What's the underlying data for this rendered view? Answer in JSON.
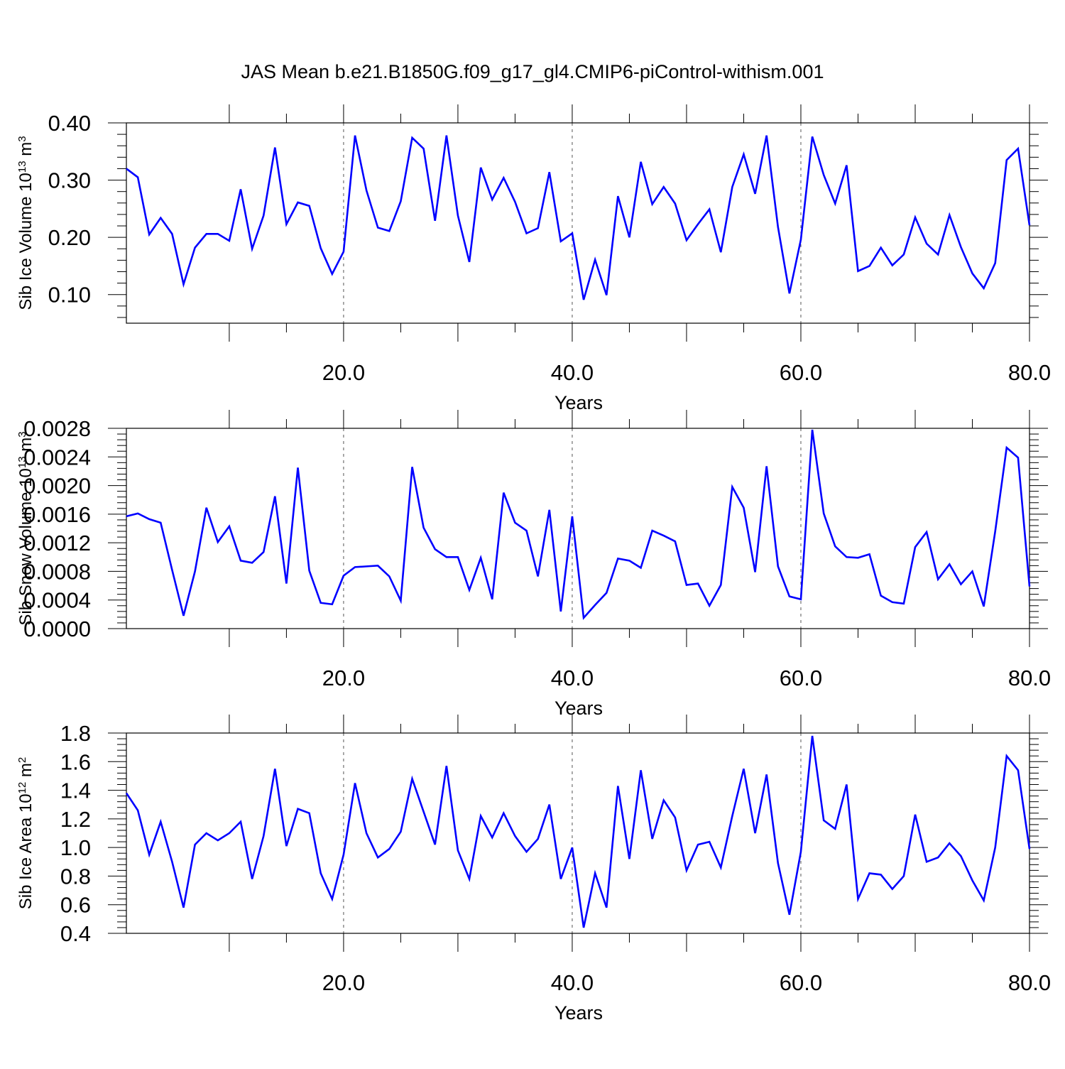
{
  "title": "JAS Mean b.e21.B1850G.f09_g17_gl4.CMIP6-piControl-withism.001",
  "line_color": "#0000ff",
  "chart_data": [
    {
      "type": "line",
      "xlabel": "Years",
      "ylabel": {
        "text": "Sib Ice Volume 10",
        "exp": "13",
        "unit": " m",
        "unit_exp": "3"
      },
      "xlim": [
        1,
        80
      ],
      "ylim": [
        0.05,
        0.4
      ],
      "xticks": [
        "20.0",
        "40.0",
        "60.0",
        "80.0"
      ],
      "yticks": [
        "0.10",
        "0.20",
        "0.30",
        "0.40"
      ],
      "x": [
        1,
        2,
        3,
        4,
        5,
        6,
        7,
        8,
        9,
        10,
        11,
        12,
        13,
        14,
        15,
        16,
        17,
        18,
        19,
        20,
        21,
        22,
        23,
        24,
        25,
        26,
        27,
        28,
        29,
        30,
        31,
        32,
        33,
        34,
        35,
        36,
        37,
        38,
        39,
        40,
        41,
        42,
        43,
        44,
        45,
        46,
        47,
        48,
        49,
        50,
        51,
        52,
        53,
        54,
        55,
        56,
        57,
        58,
        59,
        60,
        61,
        62,
        63,
        64,
        65,
        66,
        67,
        68,
        69,
        70,
        71,
        72,
        73,
        74,
        75,
        76,
        77,
        78,
        79,
        80
      ],
      "series": [
        {
          "values": [
            0.32,
            0.305,
            0.205,
            0.234,
            0.206,
            0.118,
            0.182,
            0.206,
            0.206,
            0.194,
            0.284,
            0.18,
            0.238,
            0.357,
            0.223,
            0.261,
            0.255,
            0.181,
            0.136,
            0.175,
            0.378,
            0.282,
            0.217,
            0.211,
            0.263,
            0.374,
            0.355,
            0.229,
            0.378,
            0.238,
            0.157,
            0.322,
            0.266,
            0.304,
            0.262,
            0.207,
            0.216,
            0.314,
            0.193,
            0.207,
            0.091,
            0.161,
            0.099,
            0.272,
            0.2,
            0.332,
            0.258,
            0.288,
            0.259,
            0.195,
            0.223,
            0.249,
            0.174,
            0.288,
            0.345,
            0.276,
            0.378,
            0.218,
            0.102,
            0.196,
            0.376,
            0.309,
            0.259,
            0.326,
            0.141,
            0.15,
            0.182,
            0.151,
            0.17,
            0.235,
            0.189,
            0.17,
            0.239,
            0.183,
            0.137,
            0.111,
            0.155,
            0.335,
            0.355,
            0.221
          ]
        }
      ]
    },
    {
      "type": "line",
      "xlabel": "Years",
      "ylabel": {
        "text": "Sib Snow Volume 10",
        "exp": "13",
        "unit": " m",
        "unit_exp": "3"
      },
      "xlim": [
        1,
        80
      ],
      "ylim": [
        0.0,
        0.0028
      ],
      "xticks": [
        "20.0",
        "40.0",
        "60.0",
        "80.0"
      ],
      "yticks": [
        "0.0000",
        "0.0004",
        "0.0008",
        "0.0012",
        "0.0016",
        "0.0020",
        "0.0024",
        "0.0028"
      ],
      "x": [
        1,
        2,
        3,
        4,
        5,
        6,
        7,
        8,
        9,
        10,
        11,
        12,
        13,
        14,
        15,
        16,
        17,
        18,
        19,
        20,
        21,
        22,
        23,
        24,
        25,
        26,
        27,
        28,
        29,
        30,
        31,
        32,
        33,
        34,
        35,
        36,
        37,
        38,
        39,
        40,
        41,
        42,
        43,
        44,
        45,
        46,
        47,
        48,
        49,
        50,
        51,
        52,
        53,
        54,
        55,
        56,
        57,
        58,
        59,
        60,
        61,
        62,
        63,
        64,
        65,
        66,
        67,
        68,
        69,
        70,
        71,
        72,
        73,
        74,
        75,
        76,
        77,
        78,
        79,
        80
      ],
      "series": [
        {
          "values": [
            0.00157,
            0.00161,
            0.00153,
            0.00148,
            0.00082,
            0.00018,
            0.0008,
            0.00169,
            0.00121,
            0.00143,
            0.00095,
            0.00092,
            0.00107,
            0.00185,
            0.00063,
            0.00225,
            0.00081,
            0.00036,
            0.00034,
            0.00074,
            0.00086,
            0.00087,
            0.00088,
            0.00073,
            0.00039,
            0.00226,
            0.00141,
            0.00111,
            0.001,
            0.001,
            0.00054,
            0.00099,
            0.00041,
            0.0019,
            0.00148,
            0.00137,
            0.00073,
            0.00166,
            0.00024,
            0.00157,
            0.00015,
            0.00033,
            0.0005,
            0.00098,
            0.00095,
            0.00085,
            0.00137,
            0.0013,
            0.00122,
            0.00061,
            0.00063,
            0.00032,
            0.00061,
            0.00198,
            0.00169,
            0.00079,
            0.00227,
            0.00087,
            0.00045,
            0.00041,
            0.00278,
            0.00161,
            0.00115,
            0.001,
            0.00099,
            0.00104,
            0.00046,
            0.00037,
            0.00035,
            0.00114,
            0.00135,
            0.00069,
            0.0009,
            0.00062,
            0.0008,
            0.00031,
            0.00136,
            0.00253,
            0.00239,
            0.00059
          ]
        }
      ]
    },
    {
      "type": "line",
      "xlabel": "Years",
      "ylabel": {
        "text": "Sib Ice Area 10",
        "exp": "12",
        "unit": " m",
        "unit_exp": "2"
      },
      "xlim": [
        1,
        80
      ],
      "ylim": [
        0.4,
        1.8
      ],
      "xticks": [
        "20.0",
        "40.0",
        "60.0",
        "80.0"
      ],
      "yticks": [
        "0.4",
        "0.6",
        "0.8",
        "1.0",
        "1.2",
        "1.4",
        "1.6",
        "1.8"
      ],
      "x": [
        1,
        2,
        3,
        4,
        5,
        6,
        7,
        8,
        9,
        10,
        11,
        12,
        13,
        14,
        15,
        16,
        17,
        18,
        19,
        20,
        21,
        22,
        23,
        24,
        25,
        26,
        27,
        28,
        29,
        30,
        31,
        32,
        33,
        34,
        35,
        36,
        37,
        38,
        39,
        40,
        41,
        42,
        43,
        44,
        45,
        46,
        47,
        48,
        49,
        50,
        51,
        52,
        53,
        54,
        55,
        56,
        57,
        58,
        59,
        60,
        61,
        62,
        63,
        64,
        65,
        66,
        67,
        68,
        69,
        70,
        71,
        72,
        73,
        74,
        75,
        76,
        77,
        78,
        79,
        80
      ],
      "series": [
        {
          "values": [
            1.38,
            1.26,
            0.95,
            1.18,
            0.9,
            0.58,
            1.02,
            1.1,
            1.05,
            1.1,
            1.18,
            0.78,
            1.08,
            1.55,
            1.01,
            1.27,
            1.24,
            0.82,
            0.64,
            0.95,
            1.45,
            1.1,
            0.93,
            0.99,
            1.11,
            1.48,
            1.25,
            1.02,
            1.57,
            0.98,
            0.78,
            1.22,
            1.07,
            1.24,
            1.08,
            0.97,
            1.06,
            1.3,
            0.78,
            1.0,
            0.44,
            0.82,
            0.58,
            1.43,
            0.92,
            1.54,
            1.06,
            1.33,
            1.21,
            0.84,
            1.02,
            1.04,
            0.86,
            1.22,
            1.55,
            1.1,
            1.51,
            0.89,
            0.53,
            0.97,
            1.78,
            1.19,
            1.13,
            1.44,
            0.64,
            0.82,
            0.81,
            0.71,
            0.8,
            1.23,
            0.9,
            0.93,
            1.03,
            0.94,
            0.77,
            0.63,
            1.0,
            1.64,
            1.54,
            0.99
          ]
        }
      ]
    }
  ]
}
